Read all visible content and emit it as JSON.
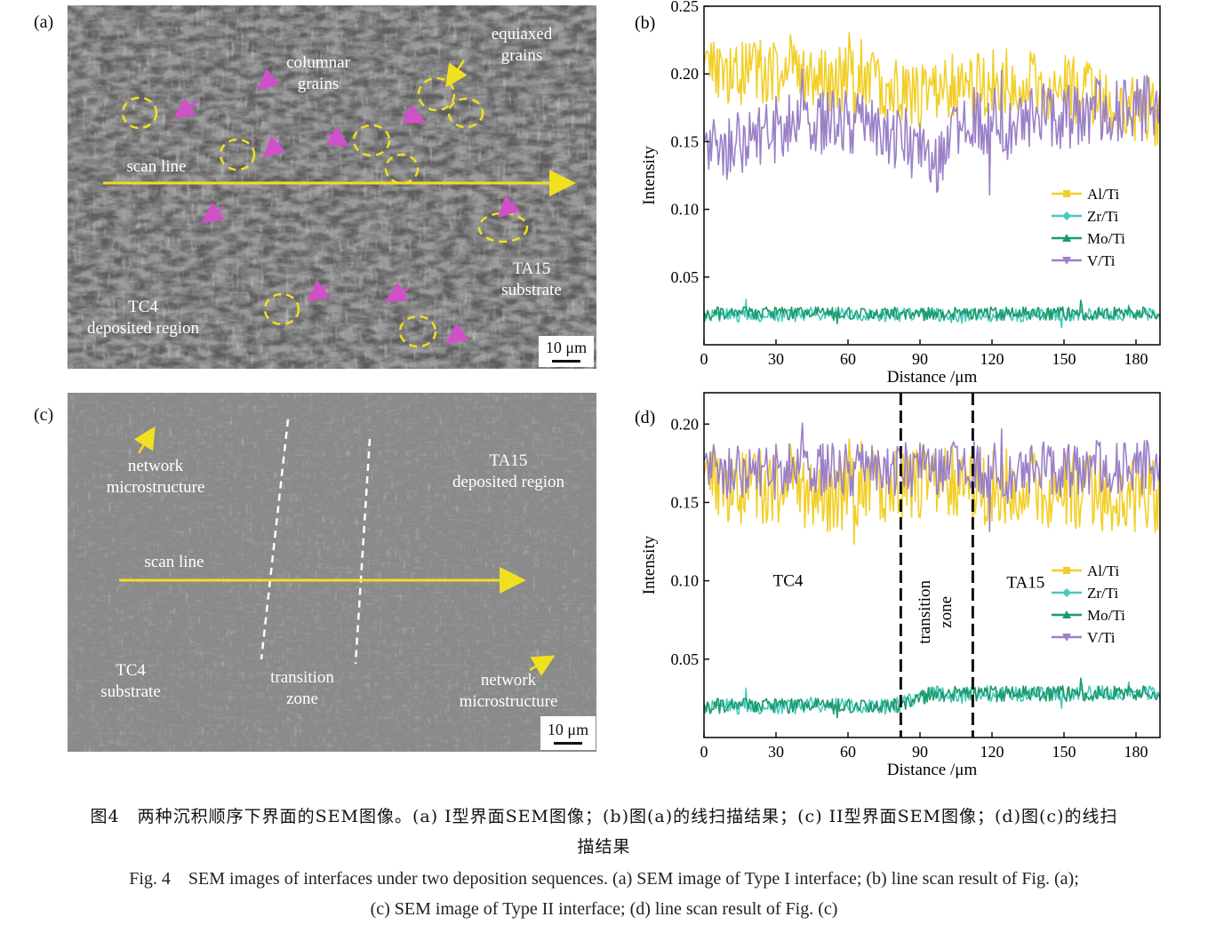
{
  "panel_a": {
    "letter": "(a)",
    "labels": {
      "columnar": [
        "columnar",
        "grains"
      ],
      "equiaxed": [
        "equiaxed",
        "grains"
      ],
      "scan_line": "scan line",
      "ta15": [
        "TA15",
        "substrate"
      ],
      "tc4": [
        "TC4",
        "deposited region"
      ],
      "scale": "10 μm"
    },
    "colors": {
      "arrow": "#f0e020",
      "grain_outline": "#f0e020",
      "grain_arrow": "#d050c8",
      "background": "#5e5e5e"
    }
  },
  "panel_c": {
    "letter": "(c)",
    "labels": {
      "network_top": [
        "network",
        "microstructure"
      ],
      "ta15": [
        "TA15",
        "deposited region"
      ],
      "scan_line": "scan line",
      "tc4": [
        "TC4",
        "substrate"
      ],
      "transition": [
        "transition",
        "zone"
      ],
      "network_bottom": [
        "network",
        "microstructure"
      ],
      "scale": "10 μm"
    },
    "colors": {
      "arrow": "#f0e020",
      "dash": "#ffffff",
      "background": "#8a8a8a"
    }
  },
  "chart_data": [
    {
      "panel": "(b)",
      "type": "line",
      "xlabel": "Distance /μm",
      "ylabel": "Intensity",
      "xlim": [
        0,
        190
      ],
      "ylim": [
        0,
        0.25
      ],
      "xticks": [
        0,
        30,
        60,
        90,
        120,
        150,
        180
      ],
      "yticks": [
        0.05,
        0.1,
        0.15,
        0.2,
        0.25
      ],
      "legend": "right-middle",
      "series": [
        {
          "name": "Al/Ti",
          "color": "#f2cf28",
          "marker": "square",
          "base": 0.195,
          "noise": 0.025,
          "profile": [
            [
              0,
              0.2
            ],
            [
              30,
              0.2
            ],
            [
              60,
              0.195
            ],
            [
              90,
              0.185
            ],
            [
              120,
              0.195
            ],
            [
              150,
              0.19
            ],
            [
              190,
              0.17
            ]
          ]
        },
        {
          "name": "Zr/Ti",
          "color": "#48c8c0",
          "marker": "diamond",
          "base": 0.022,
          "noise": 0.005,
          "profile": [
            [
              0,
              0.022
            ],
            [
              190,
              0.022
            ]
          ]
        },
        {
          "name": "Mo/Ti",
          "color": "#1c9a6a",
          "marker": "triangle-up",
          "base": 0.023,
          "noise": 0.005,
          "profile": [
            [
              0,
              0.023
            ],
            [
              190,
              0.023
            ]
          ]
        },
        {
          "name": "V/Ti",
          "color": "#9b80c8",
          "marker": "triangle-down",
          "base": 0.16,
          "noise": 0.025,
          "profile": [
            [
              0,
              0.14
            ],
            [
              30,
              0.16
            ],
            [
              60,
              0.165
            ],
            [
              85,
              0.15
            ],
            [
              95,
              0.13
            ],
            [
              110,
              0.165
            ],
            [
              150,
              0.17
            ],
            [
              190,
              0.175
            ]
          ]
        }
      ]
    },
    {
      "panel": "(d)",
      "type": "line",
      "xlabel": "Distance /μm",
      "ylabel": "Intensity",
      "xlim": [
        0,
        190
      ],
      "ylim": [
        0,
        0.22
      ],
      "xticks": [
        0,
        30,
        60,
        90,
        120,
        150,
        180
      ],
      "yticks": [
        0.05,
        0.1,
        0.15,
        0.2
      ],
      "legend": "right-middle",
      "annotations": [
        "TC4",
        "transition",
        "zone",
        "TA15"
      ],
      "boundaries": [
        82,
        112
      ],
      "series": [
        {
          "name": "Al/Ti",
          "color": "#f2cf28",
          "marker": "square",
          "base": 0.155,
          "noise": 0.025,
          "profile": [
            [
              0,
              0.16
            ],
            [
              60,
              0.155
            ],
            [
              90,
              0.165
            ],
            [
              120,
              0.16
            ],
            [
              190,
              0.155
            ]
          ]
        },
        {
          "name": "Zr/Ti",
          "color": "#48c8c0",
          "marker": "diamond",
          "base": 0.025,
          "noise": 0.005,
          "profile": [
            [
              0,
              0.02
            ],
            [
              80,
              0.02
            ],
            [
              95,
              0.028
            ],
            [
              190,
              0.028
            ]
          ]
        },
        {
          "name": "Mo/Ti",
          "color": "#1c9a6a",
          "marker": "triangle-up",
          "base": 0.025,
          "noise": 0.005,
          "profile": [
            [
              0,
              0.02
            ],
            [
              80,
              0.02
            ],
            [
              95,
              0.028
            ],
            [
              190,
              0.028
            ]
          ]
        },
        {
          "name": "V/Ti",
          "color": "#9b80c8",
          "marker": "triangle-down",
          "base": 0.17,
          "noise": 0.018,
          "profile": [
            [
              0,
              0.17
            ],
            [
              190,
              0.172
            ]
          ]
        }
      ]
    }
  ],
  "caption": {
    "cn_line1": "图4　两种沉积顺序下界面的SEM图像。(a) I型界面SEM图像；(b)图(a)的线扫描结果；(c) II型界面SEM图像；(d)图(c)的线扫",
    "cn_line2": "描结果",
    "en_line1": "Fig. 4　SEM images of interfaces under two deposition sequences. (a) SEM image of Type I interface; (b) line scan result of Fig. (a);",
    "en_line2": "(c) SEM image of Type II interface; (d) line scan result of Fig. (c)"
  }
}
